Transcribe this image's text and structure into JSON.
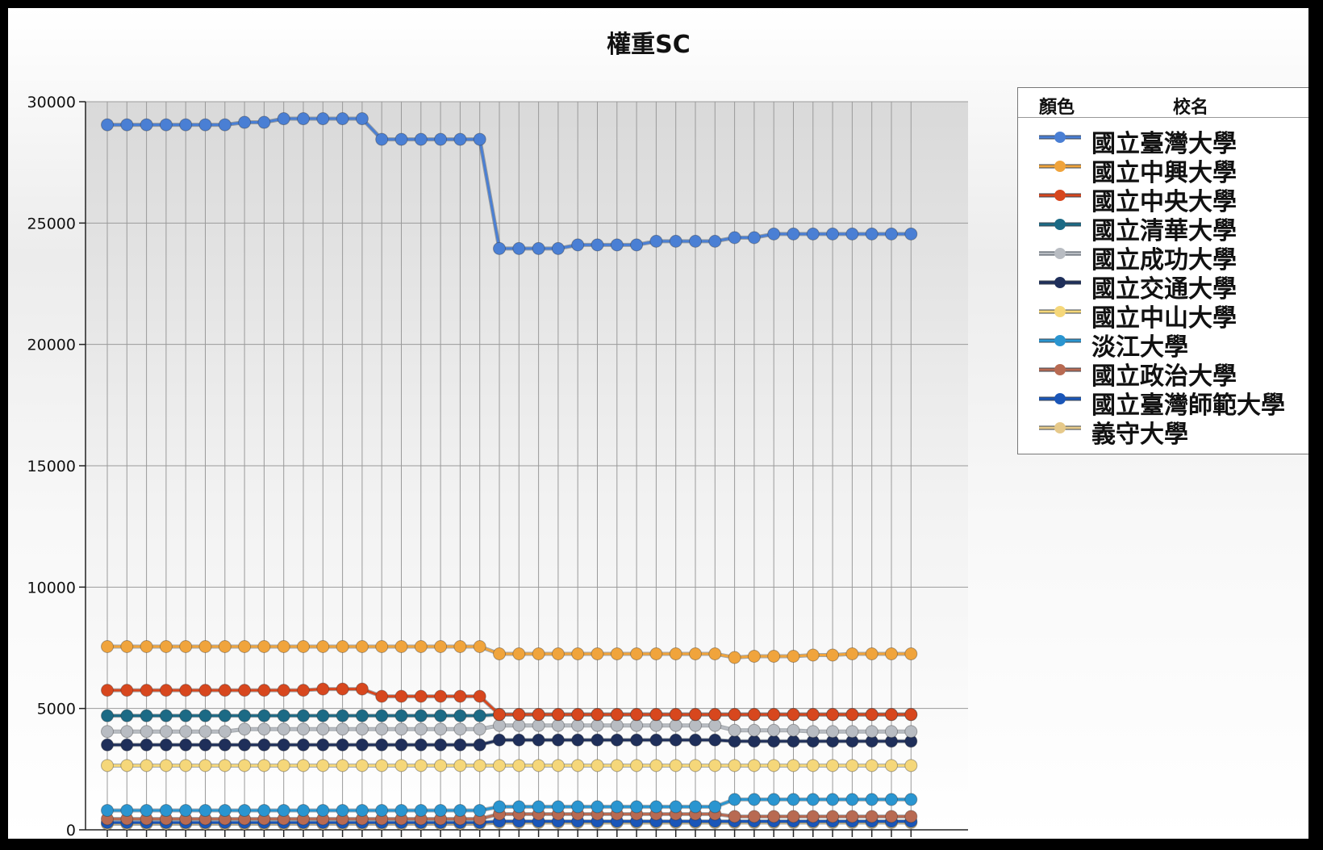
{
  "chart_data": {
    "type": "line",
    "title": "權重SC",
    "xlabel": "",
    "ylabel": "",
    "ylim": [
      0,
      30000
    ],
    "yticks": [
      0,
      5000,
      10000,
      15000,
      20000,
      25000,
      30000
    ],
    "grid": true,
    "legend_position": "right",
    "legend_headers": {
      "color": "顏色",
      "name": "校名"
    },
    "x": [
      1,
      2,
      3,
      4,
      5,
      6,
      7,
      8,
      9,
      10,
      11,
      12,
      13,
      14,
      15,
      16,
      17,
      18,
      19,
      20,
      21,
      22,
      23,
      24,
      25,
      26,
      27,
      28,
      29,
      30,
      31,
      32,
      33,
      34,
      35,
      36,
      37,
      38,
      39,
      40,
      41,
      42
    ],
    "series": [
      {
        "name": "國立臺灣大學",
        "color": "#4a7fd4",
        "values": [
          29050,
          29050,
          29050,
          29050,
          29050,
          29050,
          29050,
          29150,
          29150,
          29300,
          29300,
          29300,
          29300,
          29300,
          28450,
          28450,
          28450,
          28450,
          28450,
          28450,
          23950,
          23950,
          23950,
          23950,
          24100,
          24100,
          24100,
          24100,
          24250,
          24250,
          24250,
          24250,
          24400,
          24400,
          24550,
          24550,
          24550,
          24550,
          24550,
          24550,
          24550,
          24550
        ]
      },
      {
        "name": "國立中興大學",
        "color": "#f0a43c",
        "values": [
          7550,
          7550,
          7550,
          7550,
          7550,
          7550,
          7550,
          7550,
          7550,
          7550,
          7550,
          7550,
          7550,
          7550,
          7550,
          7550,
          7550,
          7550,
          7550,
          7550,
          7250,
          7250,
          7250,
          7250,
          7250,
          7250,
          7250,
          7250,
          7250,
          7250,
          7250,
          7250,
          7100,
          7150,
          7150,
          7150,
          7200,
          7200,
          7250,
          7250,
          7250,
          7250
        ]
      },
      {
        "name": "國立中央大學",
        "color": "#d7471e",
        "values": [
          5750,
          5750,
          5750,
          5750,
          5750,
          5750,
          5750,
          5750,
          5750,
          5750,
          5750,
          5800,
          5800,
          5800,
          5500,
          5500,
          5500,
          5500,
          5500,
          5500,
          4750,
          4750,
          4750,
          4750,
          4750,
          4750,
          4750,
          4750,
          4750,
          4750,
          4750,
          4750,
          4750,
          4750,
          4750,
          4750,
          4750,
          4750,
          4750,
          4750,
          4750,
          4750
        ]
      },
      {
        "name": "國立清華大學",
        "color": "#1c6a85",
        "values": [
          4700,
          4700,
          4700,
          4700,
          4700,
          4700,
          4700,
          4700,
          4700,
          4700,
          4700,
          4700,
          4700,
          4700,
          4700,
          4700,
          4700,
          4700,
          4700,
          4700,
          4750,
          4750,
          4750,
          4750,
          4750,
          4750,
          4750,
          4750,
          4750,
          4750,
          4750,
          4750,
          4750,
          4750,
          4750,
          4750,
          4750,
          4750,
          4750,
          4750,
          4750,
          4750
        ]
      },
      {
        "name": "國立成功大學",
        "color": "#b8bcc2",
        "values": [
          4050,
          4050,
          4050,
          4050,
          4050,
          4050,
          4050,
          4150,
          4150,
          4150,
          4150,
          4150,
          4150,
          4150,
          4150,
          4150,
          4150,
          4150,
          4150,
          4150,
          4300,
          4300,
          4300,
          4300,
          4300,
          4300,
          4300,
          4300,
          4300,
          4300,
          4300,
          4300,
          4100,
          4100,
          4100,
          4100,
          4050,
          4050,
          4050,
          4050,
          4050,
          4050
        ]
      },
      {
        "name": "國立交通大學",
        "color": "#1f2f5a",
        "values": [
          3500,
          3500,
          3500,
          3500,
          3500,
          3500,
          3500,
          3500,
          3500,
          3500,
          3500,
          3500,
          3500,
          3500,
          3500,
          3500,
          3500,
          3500,
          3500,
          3500,
          3700,
          3700,
          3700,
          3700,
          3700,
          3700,
          3700,
          3700,
          3700,
          3700,
          3700,
          3700,
          3650,
          3650,
          3650,
          3650,
          3650,
          3650,
          3650,
          3650,
          3650,
          3650
        ]
      },
      {
        "name": "國立中山大學",
        "color": "#f5d77a",
        "values": [
          2650,
          2650,
          2650,
          2650,
          2650,
          2650,
          2650,
          2650,
          2650,
          2650,
          2650,
          2650,
          2650,
          2650,
          2650,
          2650,
          2650,
          2650,
          2650,
          2650,
          2650,
          2650,
          2650,
          2650,
          2650,
          2650,
          2650,
          2650,
          2650,
          2650,
          2650,
          2650,
          2650,
          2650,
          2650,
          2650,
          2650,
          2650,
          2650,
          2650,
          2650,
          2650
        ]
      },
      {
        "name": "淡江大學",
        "color": "#2a95d0",
        "values": [
          800,
          800,
          800,
          800,
          800,
          800,
          800,
          800,
          800,
          800,
          800,
          800,
          800,
          800,
          800,
          800,
          800,
          800,
          800,
          800,
          950,
          950,
          950,
          950,
          950,
          950,
          950,
          950,
          950,
          950,
          950,
          950,
          1250,
          1250,
          1250,
          1250,
          1250,
          1250,
          1250,
          1250,
          1250,
          1250
        ]
      },
      {
        "name": "國立政治大學",
        "color": "#b86a52",
        "values": [
          450,
          450,
          450,
          450,
          450,
          450,
          450,
          450,
          450,
          450,
          450,
          450,
          450,
          450,
          450,
          450,
          450,
          450,
          450,
          450,
          650,
          650,
          650,
          650,
          650,
          650,
          650,
          650,
          650,
          650,
          650,
          650,
          550,
          550,
          550,
          550,
          550,
          550,
          550,
          550,
          550,
          550
        ]
      },
      {
        "name": "國立臺灣師範大學",
        "color": "#1a56b8",
        "values": [
          300,
          300,
          300,
          300,
          300,
          300,
          300,
          300,
          300,
          300,
          300,
          300,
          300,
          300,
          300,
          300,
          300,
          300,
          300,
          300,
          350,
          350,
          350,
          350,
          350,
          350,
          350,
          350,
          350,
          350,
          350,
          350,
          350,
          350,
          350,
          350,
          350,
          350,
          350,
          350,
          350,
          350
        ]
      },
      {
        "name": "義守大學",
        "color": "#e6c98a",
        "values": [
          250,
          250,
          250,
          250,
          250,
          250,
          250,
          250,
          250,
          250,
          250,
          250,
          250,
          250,
          250,
          250,
          250,
          250,
          250,
          250,
          300,
          300,
          300,
          300,
          300,
          300,
          300,
          300,
          300,
          300,
          300,
          300,
          300,
          300,
          300,
          300,
          300,
          300,
          300,
          300,
          300,
          300
        ]
      }
    ]
  }
}
